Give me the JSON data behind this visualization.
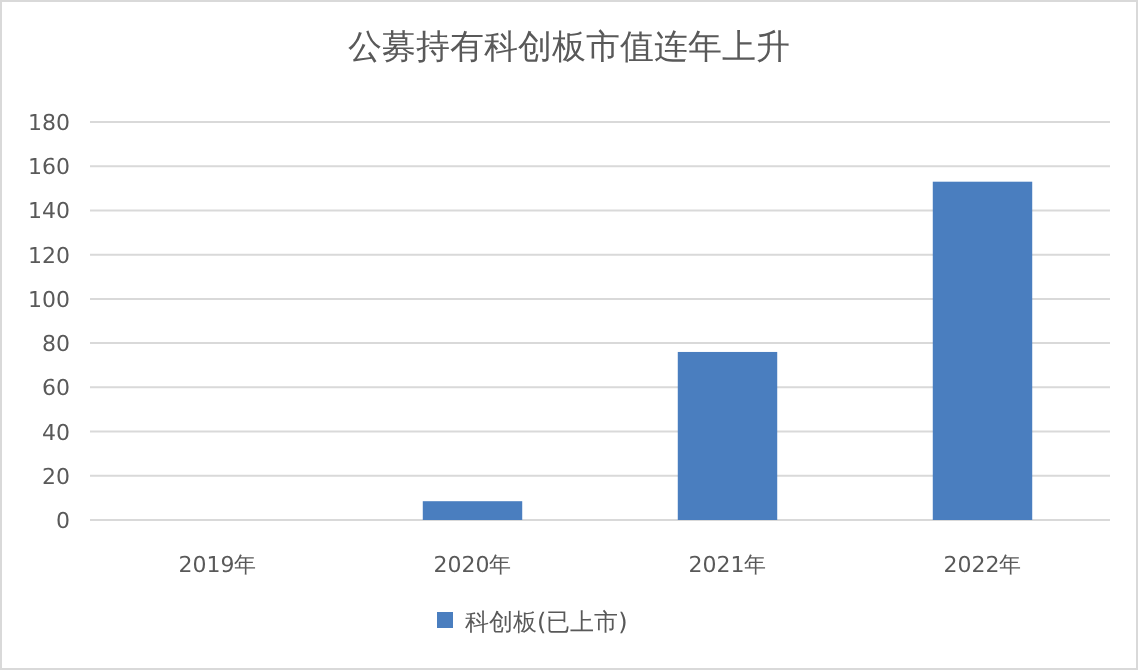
{
  "chart_data": {
    "type": "bar",
    "title": "公募持有科创板市值连年上升",
    "categories": [
      "2019年",
      "2020年",
      "2021年",
      "2022年"
    ],
    "series": [
      {
        "name": "科创板(已上市)",
        "color": "#4a7ebf",
        "values": [
          0,
          8.5,
          76,
          153
        ]
      }
    ],
    "ylim": [
      0,
      180
    ],
    "yticks": [
      0,
      20,
      40,
      60,
      80,
      100,
      120,
      140,
      160,
      180
    ],
    "grid": "y",
    "legend": "bottom"
  }
}
